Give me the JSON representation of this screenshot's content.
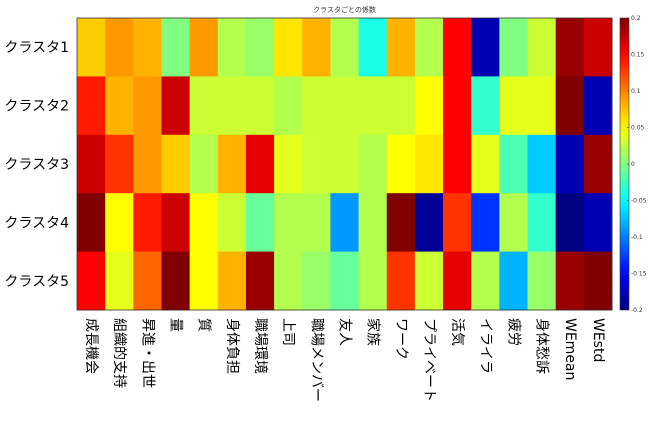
{
  "chart_data": {
    "type": "heatmap",
    "title": "クラスタごとの係数",
    "rows": [
      "クラスタ1",
      "クラスタ2",
      "クラスタ3",
      "クラスタ4",
      "クラスタ5"
    ],
    "columns": [
      "成長機会",
      "組織的支持",
      "昇進・出世",
      "量",
      "質",
      "身体負担",
      "職場環境",
      "上司",
      "職場メンバー",
      "友人",
      "家族",
      "ワーク",
      "プライベート",
      "活気",
      "イライラ",
      "疲労",
      "身体愁訴",
      "WEmean",
      "WEstd"
    ],
    "values": [
      [
        0.07,
        0.09,
        0.08,
        0.0,
        0.09,
        0.02,
        0.01,
        0.06,
        0.08,
        0.02,
        -0.04,
        0.08,
        0.02,
        0.15,
        -0.18,
        0.0,
        0.03,
        0.19,
        0.17
      ],
      [
        0.14,
        0.08,
        0.09,
        0.17,
        0.03,
        0.03,
        0.03,
        0.02,
        0.03,
        0.03,
        0.03,
        0.03,
        0.05,
        0.15,
        -0.03,
        0.04,
        0.04,
        0.2,
        -0.18
      ],
      [
        0.17,
        0.13,
        0.09,
        0.07,
        0.02,
        0.08,
        0.16,
        0.04,
        0.03,
        0.03,
        0.02,
        0.05,
        0.06,
        0.15,
        0.04,
        -0.02,
        -0.07,
        -0.18,
        0.19
      ],
      [
        0.21,
        0.05,
        0.14,
        0.17,
        0.05,
        0.03,
        -0.01,
        0.02,
        0.02,
        -0.09,
        0.02,
        0.21,
        -0.19,
        0.13,
        -0.13,
        0.02,
        -0.03,
        -0.2,
        -0.18
      ],
      [
        0.15,
        0.04,
        0.11,
        0.22,
        0.05,
        0.08,
        0.19,
        0.02,
        0.01,
        -0.01,
        0.02,
        0.13,
        0.03,
        0.16,
        0.02,
        -0.08,
        0.01,
        0.19,
        0.2
      ]
    ],
    "colorbar": {
      "min": -0.2,
      "max": 0.2,
      "ticks": [
        -0.2,
        -0.15,
        -0.1,
        -0.05,
        0,
        0.05,
        0.1,
        0.15,
        0.2
      ],
      "tick_labels": [
        "-0.2",
        "-0.15",
        "-0.1",
        "-0.05",
        "0",
        "0.05",
        "0.1",
        "0.15",
        "0.2"
      ],
      "colormap": "jet"
    }
  }
}
